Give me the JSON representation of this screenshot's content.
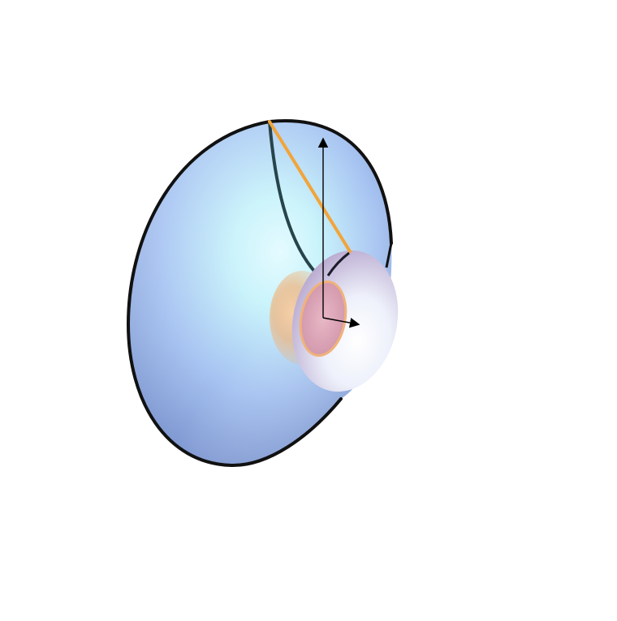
{
  "figure": {
    "kind": "3D surface of revolution (flared funnel) with generating curve, segment and axis arrows",
    "colors": {
      "background": "#ffffff",
      "outer_rim": "#111111",
      "surface_light": "#c9f3fb",
      "surface_mid": "#a7c4f2",
      "surface_dark": "#6f86c4",
      "inner_rim_face": "#e9eefa",
      "throat_pink": "#d9a7b8",
      "throat_orange": "#f0b27a",
      "generating_curve": "#27444b",
      "segment": "#f2a43a",
      "axis_arrows": "#000000"
    },
    "icons": {
      "vertical_axis": "arrow-up-icon",
      "horizontal_axis": "arrow-right-icon"
    }
  }
}
